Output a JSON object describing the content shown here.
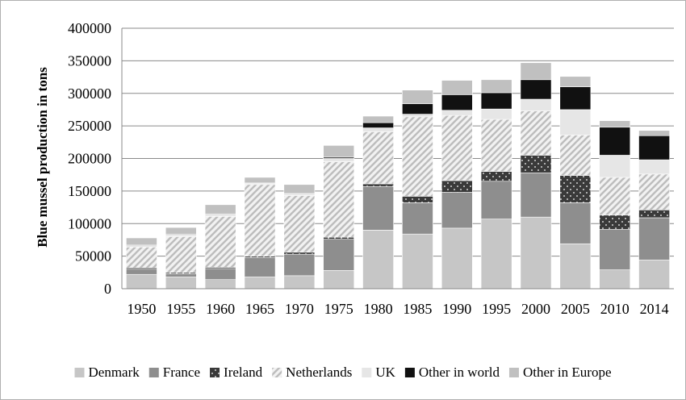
{
  "chart_data": {
    "type": "bar",
    "stacked": true,
    "title": "",
    "xlabel": "",
    "ylabel": "Blue mussel production in tons",
    "ylim": [
      0,
      400000
    ],
    "yticks": [
      "0",
      "50000",
      "100000",
      "150000",
      "200000",
      "250000",
      "300000",
      "350000",
      "400000"
    ],
    "grid": true,
    "legend_position": "bottom",
    "categories": [
      "1950",
      "1955",
      "1960",
      "1965",
      "1970",
      "1975",
      "1980",
      "1985",
      "1990",
      "1995",
      "2000",
      "2005",
      "2010",
      "2014"
    ],
    "series": [
      {
        "name": "Denmark",
        "color": "#c6c6c6",
        "pattern": "solid",
        "values": [
          22000,
          18000,
          14000,
          18000,
          20000,
          28000,
          90000,
          84000,
          93000,
          107000,
          110000,
          69000,
          29000,
          44000
        ]
      },
      {
        "name": "France",
        "color": "#8e8e8e",
        "pattern": "solid",
        "values": [
          8000,
          5000,
          17000,
          30000,
          33000,
          48000,
          67000,
          48000,
          55000,
          58000,
          68000,
          63000,
          62000,
          65000
        ]
      },
      {
        "name": "Ireland",
        "color": "#3a3a3a",
        "pattern": "dots",
        "values": [
          2000,
          2000,
          2000,
          2000,
          3000,
          3000,
          4000,
          10000,
          18000,
          15000,
          27000,
          42000,
          22000,
          12000
        ]
      },
      {
        "name": "Netherlands",
        "color": "#d2d2d2",
        "pattern": "diagonal",
        "values": [
          32000,
          55000,
          78000,
          110000,
          87000,
          116000,
          80000,
          122000,
          100000,
          80000,
          68000,
          62000,
          58000,
          55000
        ]
      },
      {
        "name": "UK",
        "color": "#e6e6e6",
        "pattern": "solid",
        "values": [
          2000,
          3000,
          3000,
          2000,
          3000,
          5000,
          6000,
          4000,
          8000,
          16000,
          18000,
          39000,
          34000,
          22000
        ]
      },
      {
        "name": "Other in world",
        "color": "#111111",
        "pattern": "solid",
        "values": [
          1000,
          1000,
          1000,
          1000,
          1000,
          2000,
          8000,
          16000,
          24000,
          25000,
          30000,
          35000,
          43000,
          37000
        ]
      },
      {
        "name": "Other in Europe",
        "color": "#c0c0c0",
        "pattern": "solid",
        "values": [
          11000,
          10000,
          14000,
          8000,
          13000,
          18000,
          10000,
          21000,
          22000,
          20000,
          26000,
          16000,
          10000,
          8000
        ]
      }
    ]
  }
}
